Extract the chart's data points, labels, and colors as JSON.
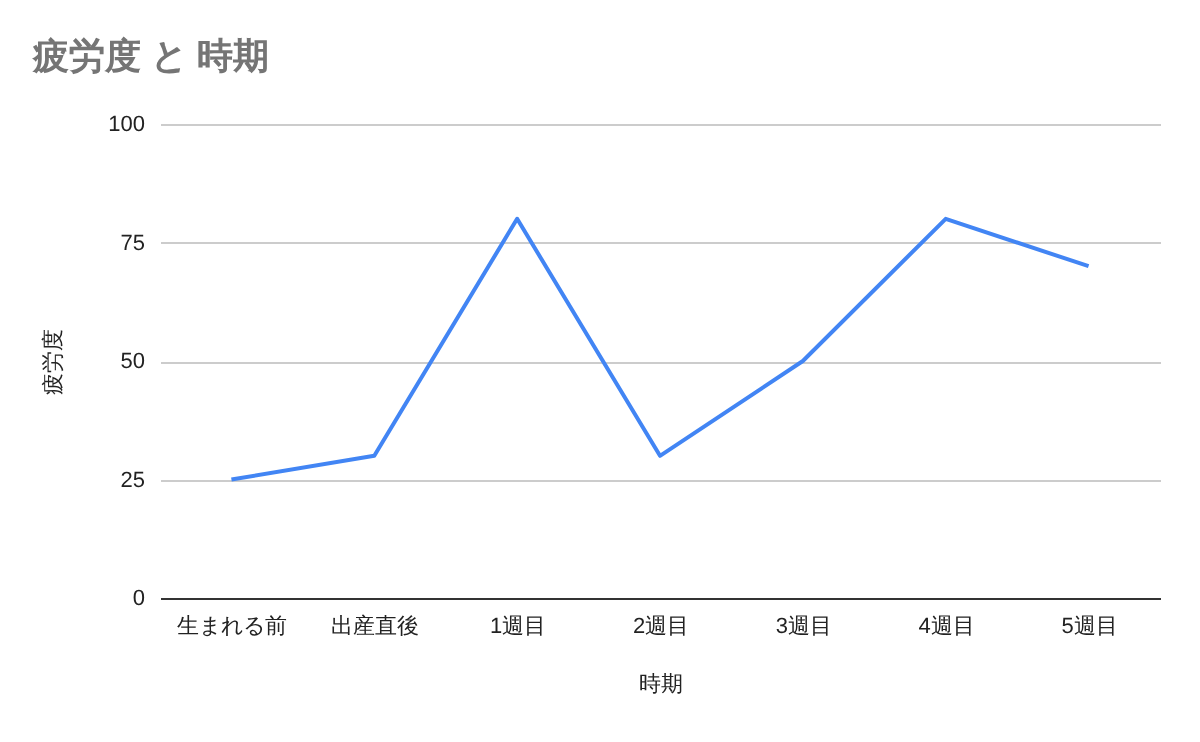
{
  "chart_data": {
    "type": "line",
    "title": "疲労度 と 時期",
    "xlabel": "時期",
    "ylabel": "疲労度",
    "categories": [
      "生まれる前",
      "出産直後",
      "1週目",
      "2週目",
      "3週目",
      "4週目",
      "5週目"
    ],
    "series": [
      {
        "color": "#4285f4",
        "values": [
          25,
          30,
          80,
          30,
          50,
          80,
          70
        ]
      }
    ],
    "ylim": [
      0,
      100
    ],
    "yticks": [
      0,
      25,
      50,
      75,
      100
    ],
    "grid": "y"
  }
}
